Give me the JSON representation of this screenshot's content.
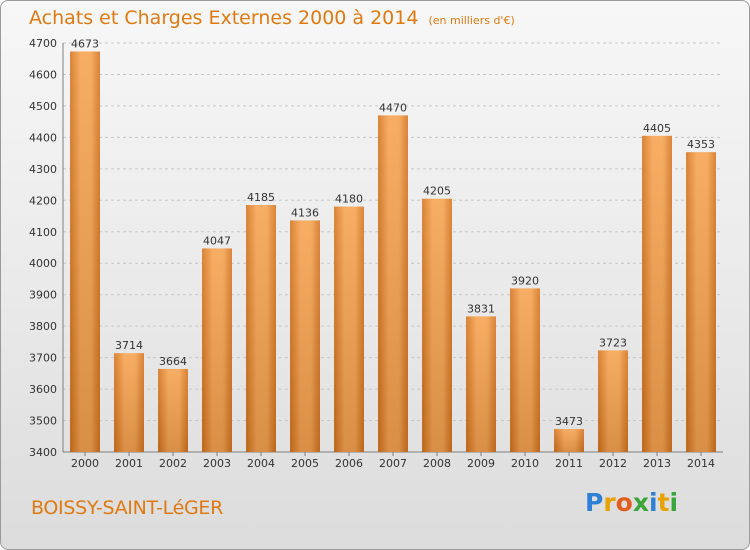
{
  "header": {
    "title": "Achats et Charges Externes 2000 à 2014",
    "subtitle": "(en milliers d'€)"
  },
  "footer": {
    "city": "BOISSY-SAINT-LéGER",
    "logo": {
      "letters": [
        "P",
        "r",
        "o",
        "x",
        "i",
        "t",
        "i"
      ],
      "colors": [
        "#2e7fd6",
        "#e8a200",
        "#e25e1a",
        "#3aa53a",
        "#2e7fd6",
        "#e8a200",
        "#3aa53a"
      ]
    }
  },
  "colors": {
    "bar_light": "#f6a24f",
    "bar_dark": "#d4731c",
    "grid": "#c8c8c8",
    "axis": "#7f7f7f"
  },
  "chart_data": {
    "type": "bar",
    "categories": [
      "2000",
      "2001",
      "2002",
      "2003",
      "2004",
      "2005",
      "2006",
      "2007",
      "2008",
      "2009",
      "2010",
      "2011",
      "2012",
      "2013",
      "2014"
    ],
    "values": [
      4673,
      3714,
      3664,
      4047,
      4185,
      4136,
      4180,
      4470,
      4205,
      3831,
      3920,
      3473,
      3723,
      4405,
      4353
    ],
    "ylim": [
      3400,
      4700
    ],
    "yticks": [
      3400,
      3500,
      3600,
      3700,
      3800,
      3900,
      4000,
      4100,
      4200,
      4300,
      4400,
      4500,
      4600,
      4700
    ],
    "grid": true,
    "data_labels": true,
    "title": "Achats et Charges Externes 2000 à 2014",
    "xlabel": "",
    "ylabel": ""
  }
}
